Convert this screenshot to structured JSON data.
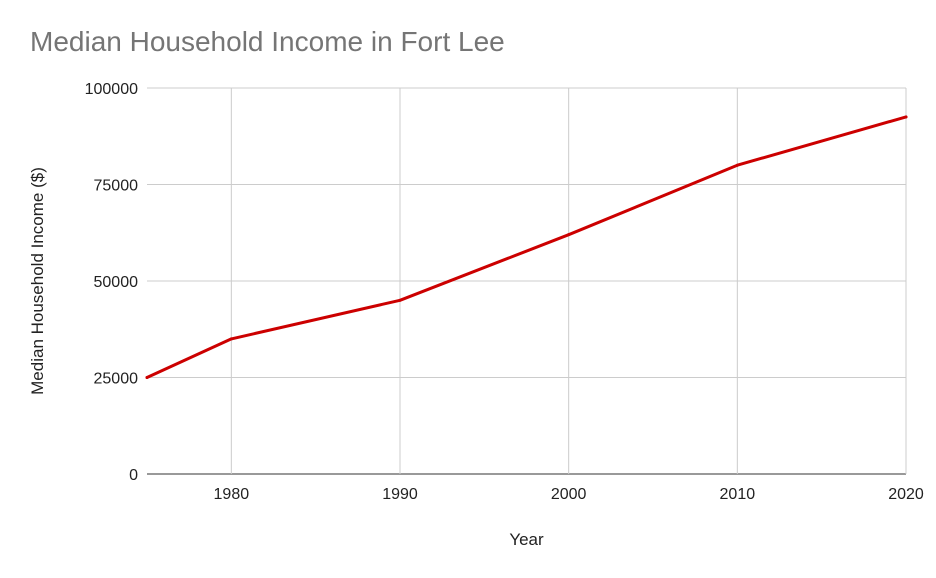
{
  "chart_data": {
    "type": "line",
    "title": "Median Household Income in Fort Lee",
    "xlabel": "Year",
    "ylabel": "Median Household Income ($)",
    "x": [
      1975,
      1980,
      1990,
      2000,
      2010,
      2020
    ],
    "series": [
      {
        "values": [
          25000,
          35000,
          45000,
          62000,
          80000,
          92500
        ],
        "color": "#cc0000"
      }
    ],
    "xlim": [
      1975,
      2020
    ],
    "ylim": [
      0,
      100000
    ],
    "x_ticks": [
      "1980",
      "1990",
      "2000",
      "2010",
      "2020"
    ],
    "y_ticks": [
      "0",
      "25000",
      "50000",
      "75000",
      "100000"
    ],
    "grid": true,
    "legend": "none"
  }
}
